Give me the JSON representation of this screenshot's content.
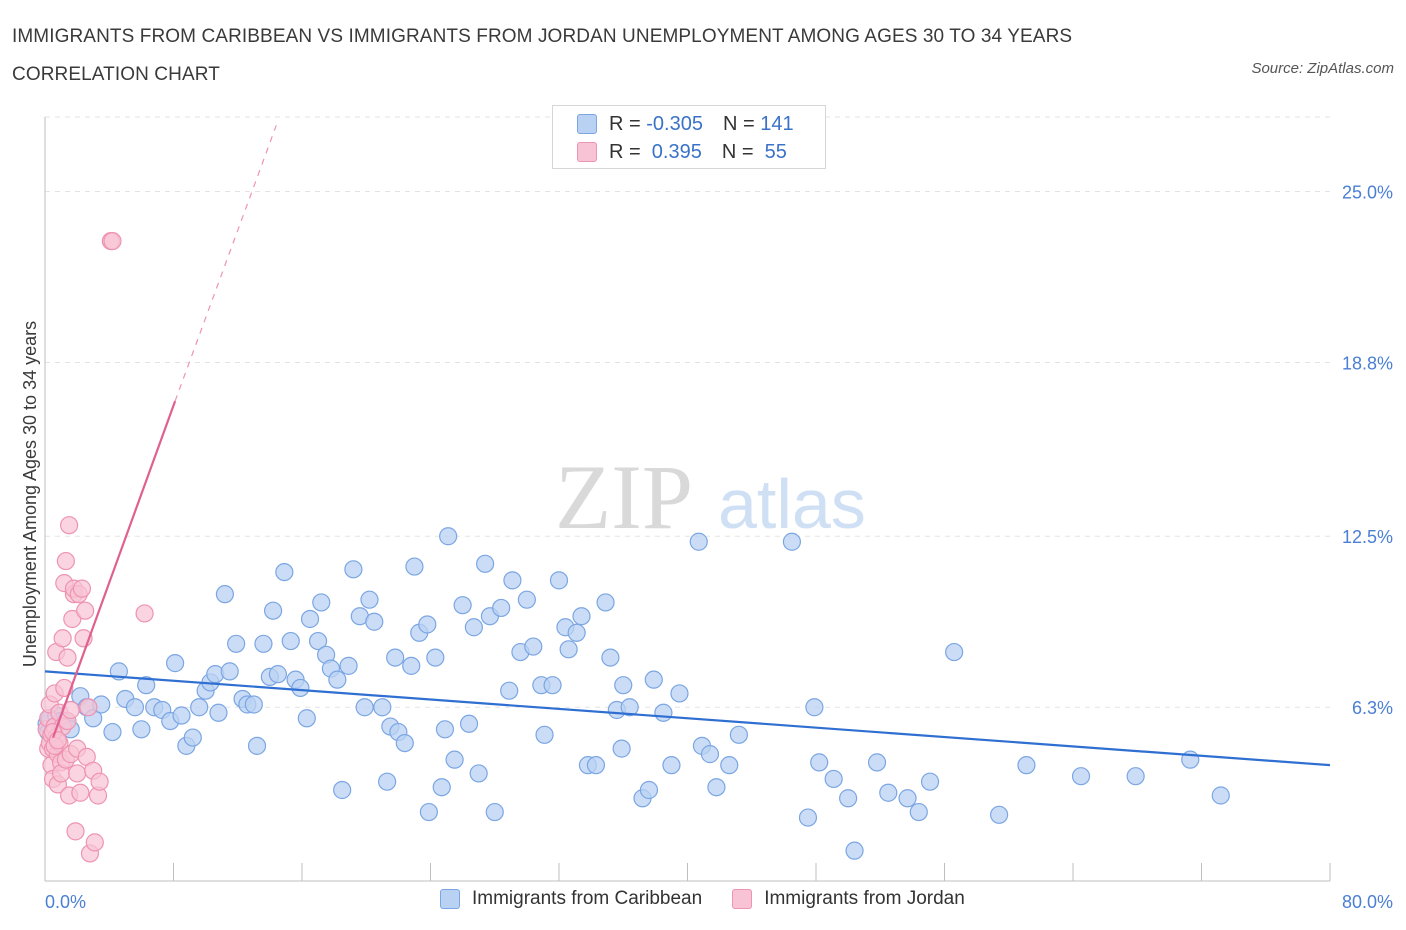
{
  "header": {
    "title": "IMMIGRANTS FROM CARIBBEAN VS IMMIGRANTS FROM JORDAN UNEMPLOYMENT AMONG AGES 30 TO 34 YEARS CORRELATION CHART",
    "source": "Source: ZipAtlas.com"
  },
  "watermark": {
    "zip": "ZIP",
    "atlas": "atlas"
  },
  "legend": {
    "rows": [
      {
        "r_label": "R = ",
        "r_value": "-0.305",
        "n_label": "N = ",
        "n_value": "141"
      },
      {
        "r_label": "R = ",
        "r_value": " 0.395",
        "n_label": "N = ",
        "n_value": " 55"
      }
    ]
  },
  "colors": {
    "caribbean_fill": "#b9d2f3",
    "caribbean_stroke": "#7ba6e3",
    "caribbean_line": "#2f6fd1",
    "jordan_fill": "#f8c3d4",
    "jordan_stroke": "#ee93b1",
    "jordan_line": "#e0608f",
    "grid": "#e3e3e3",
    "tick_label": "#4a7fd4"
  },
  "chart_data": {
    "type": "scatter",
    "title": "IMMIGRANTS FROM CARIBBEAN VS IMMIGRANTS FROM JORDAN UNEMPLOYMENT AMONG AGES 30 TO 34 YEARS CORRELATION CHART",
    "xlabel": "",
    "ylabel": "Unemployment Among Ages 30 to 34 years",
    "xlim": [
      0,
      80
    ],
    "ylim": [
      0,
      27.7
    ],
    "x_tick_labels": [
      "0.0%",
      "80.0%"
    ],
    "y_ticks": [
      6.3,
      12.5,
      18.8,
      25.0
    ],
    "y_tick_labels": [
      "6.3%",
      "12.5%",
      "18.8%",
      "25.0%"
    ],
    "grid": true,
    "legend_position": "top-center",
    "series": [
      {
        "name": "Immigrants from Caribbean",
        "R": -0.305,
        "N": 141,
        "trend": {
          "x": [
            0,
            80
          ],
          "y": [
            7.6,
            4.2
          ]
        },
        "points": [
          [
            0.1,
            5.7
          ],
          [
            0.2,
            5.4
          ],
          [
            0.3,
            5.9
          ],
          [
            0.5,
            5.5
          ],
          [
            0.7,
            6.0
          ],
          [
            1.0,
            5.8
          ],
          [
            1.3,
            5.8
          ],
          [
            1.6,
            5.5
          ],
          [
            2.2,
            6.7
          ],
          [
            2.6,
            6.3
          ],
          [
            3.0,
            5.9
          ],
          [
            3.5,
            6.4
          ],
          [
            4.2,
            5.4
          ],
          [
            4.6,
            7.6
          ],
          [
            5.0,
            6.6
          ],
          [
            5.6,
            6.3
          ],
          [
            6.0,
            5.5
          ],
          [
            6.3,
            7.1
          ],
          [
            6.8,
            6.3
          ],
          [
            7.3,
            6.2
          ],
          [
            7.8,
            5.8
          ],
          [
            8.1,
            7.9
          ],
          [
            8.5,
            6.0
          ],
          [
            8.8,
            4.9
          ],
          [
            9.2,
            5.2
          ],
          [
            9.6,
            6.3
          ],
          [
            10.0,
            6.9
          ],
          [
            10.3,
            7.2
          ],
          [
            10.6,
            7.5
          ],
          [
            10.8,
            6.1
          ],
          [
            11.2,
            10.4
          ],
          [
            11.5,
            7.6
          ],
          [
            11.9,
            8.6
          ],
          [
            12.3,
            6.6
          ],
          [
            12.6,
            6.4
          ],
          [
            13.0,
            6.4
          ],
          [
            13.2,
            4.9
          ],
          [
            13.6,
            8.6
          ],
          [
            14.0,
            7.4
          ],
          [
            14.2,
            9.8
          ],
          [
            14.5,
            7.5
          ],
          [
            14.9,
            11.2
          ],
          [
            15.3,
            8.7
          ],
          [
            15.6,
            7.3
          ],
          [
            15.9,
            7.0
          ],
          [
            16.3,
            5.9
          ],
          [
            16.5,
            9.5
          ],
          [
            17.0,
            8.7
          ],
          [
            17.2,
            10.1
          ],
          [
            17.5,
            8.2
          ],
          [
            17.8,
            7.7
          ],
          [
            18.2,
            7.3
          ],
          [
            18.5,
            3.3
          ],
          [
            18.9,
            7.8
          ],
          [
            19.2,
            11.3
          ],
          [
            19.6,
            9.6
          ],
          [
            19.9,
            6.3
          ],
          [
            20.2,
            10.2
          ],
          [
            20.5,
            9.4
          ],
          [
            21.0,
            6.3
          ],
          [
            21.3,
            3.6
          ],
          [
            21.5,
            5.6
          ],
          [
            21.8,
            8.1
          ],
          [
            22.0,
            5.4
          ],
          [
            22.4,
            5.0
          ],
          [
            22.8,
            7.8
          ],
          [
            23.0,
            11.4
          ],
          [
            23.3,
            9.0
          ],
          [
            23.8,
            9.3
          ],
          [
            23.9,
            2.5
          ],
          [
            24.3,
            8.1
          ],
          [
            24.7,
            3.4
          ],
          [
            24.9,
            5.5
          ],
          [
            25.1,
            12.5
          ],
          [
            25.5,
            4.4
          ],
          [
            26.0,
            10.0
          ],
          [
            26.4,
            5.7
          ],
          [
            26.7,
            9.2
          ],
          [
            27.0,
            3.9
          ],
          [
            27.4,
            11.5
          ],
          [
            27.7,
            9.6
          ],
          [
            28.0,
            2.5
          ],
          [
            28.4,
            9.9
          ],
          [
            28.9,
            6.9
          ],
          [
            29.1,
            10.9
          ],
          [
            29.6,
            8.3
          ],
          [
            30.0,
            10.2
          ],
          [
            30.4,
            8.5
          ],
          [
            30.9,
            7.1
          ],
          [
            31.1,
            5.3
          ],
          [
            31.6,
            7.1
          ],
          [
            32.0,
            10.9
          ],
          [
            32.4,
            9.2
          ],
          [
            32.6,
            8.4
          ],
          [
            33.1,
            9.0
          ],
          [
            33.4,
            9.6
          ],
          [
            33.8,
            4.2
          ],
          [
            34.3,
            4.2
          ],
          [
            34.9,
            10.1
          ],
          [
            35.2,
            8.1
          ],
          [
            35.6,
            6.2
          ],
          [
            35.9,
            4.8
          ],
          [
            36.0,
            7.1
          ],
          [
            36.4,
            6.3
          ],
          [
            37.2,
            3.0
          ],
          [
            37.6,
            3.3
          ],
          [
            37.9,
            7.3
          ],
          [
            38.5,
            6.1
          ],
          [
            39.0,
            4.2
          ],
          [
            39.5,
            6.8
          ],
          [
            40.7,
            12.3
          ],
          [
            40.9,
            4.9
          ],
          [
            41.4,
            4.6
          ],
          [
            41.8,
            3.4
          ],
          [
            42.6,
            4.2
          ],
          [
            43.2,
            5.3
          ],
          [
            46.5,
            12.3
          ],
          [
            47.5,
            2.3
          ],
          [
            47.9,
            6.3
          ],
          [
            48.2,
            4.3
          ],
          [
            49.1,
            3.7
          ],
          [
            50.0,
            3.0
          ],
          [
            50.4,
            1.1
          ],
          [
            51.8,
            4.3
          ],
          [
            52.5,
            3.2
          ],
          [
            53.7,
            3.0
          ],
          [
            54.4,
            2.5
          ],
          [
            55.1,
            3.6
          ],
          [
            56.6,
            8.3
          ],
          [
            59.4,
            2.4
          ],
          [
            61.1,
            4.2
          ],
          [
            64.5,
            3.8
          ],
          [
            67.9,
            3.8
          ],
          [
            71.3,
            4.4
          ],
          [
            73.2,
            3.1
          ]
        ]
      },
      {
        "name": "Immigrants from Jordan",
        "R": 0.395,
        "N": 55,
        "trend": {
          "x": [
            0.5,
            8.1
          ],
          "y": [
            5.2,
            17.4
          ],
          "extension": {
            "x": [
              8.1,
              14.4
            ],
            "y": [
              17.4,
              27.4
            ]
          }
        },
        "points": [
          [
            0.1,
            5.5
          ],
          [
            0.2,
            4.8
          ],
          [
            0.2,
            5.9
          ],
          [
            0.3,
            6.4
          ],
          [
            0.3,
            5.0
          ],
          [
            0.4,
            5.3
          ],
          [
            0.4,
            4.2
          ],
          [
            0.5,
            4.8
          ],
          [
            0.5,
            3.7
          ],
          [
            0.6,
            5.6
          ],
          [
            0.6,
            6.8
          ],
          [
            0.7,
            5.2
          ],
          [
            0.7,
            8.3
          ],
          [
            0.8,
            4.6
          ],
          [
            0.8,
            3.5
          ],
          [
            0.9,
            6.1
          ],
          [
            0.9,
            5.0
          ],
          [
            1.0,
            4.3
          ],
          [
            1.0,
            3.9
          ],
          [
            1.1,
            8.8
          ],
          [
            1.1,
            5.6
          ],
          [
            1.2,
            7.0
          ],
          [
            1.2,
            10.8
          ],
          [
            1.3,
            4.4
          ],
          [
            1.3,
            11.6
          ],
          [
            1.4,
            5.8
          ],
          [
            1.4,
            8.1
          ],
          [
            1.5,
            12.9
          ],
          [
            1.5,
            3.1
          ],
          [
            1.6,
            4.6
          ],
          [
            1.6,
            6.2
          ],
          [
            1.7,
            9.5
          ],
          [
            1.8,
            10.4
          ],
          [
            1.8,
            10.6
          ],
          [
            1.9,
            1.8
          ],
          [
            2.0,
            4.8
          ],
          [
            2.0,
            3.9
          ],
          [
            2.1,
            10.4
          ],
          [
            2.2,
            3.2
          ],
          [
            2.3,
            10.6
          ],
          [
            2.4,
            8.8
          ],
          [
            2.5,
            9.8
          ],
          [
            2.6,
            4.5
          ],
          [
            2.7,
            6.3
          ],
          [
            2.8,
            1.0
          ],
          [
            3.0,
            4.0
          ],
          [
            3.1,
            1.4
          ],
          [
            3.3,
            3.1
          ],
          [
            3.4,
            3.6
          ],
          [
            4.1,
            23.2
          ],
          [
            4.2,
            23.2
          ],
          [
            6.2,
            9.7
          ],
          [
            0.5,
            5.4
          ],
          [
            0.6,
            4.9
          ],
          [
            0.8,
            5.1
          ]
        ]
      }
    ]
  },
  "bottom_legend": {
    "caribbean": "Immigrants from Caribbean",
    "jordan": "Immigrants from Jordan"
  }
}
